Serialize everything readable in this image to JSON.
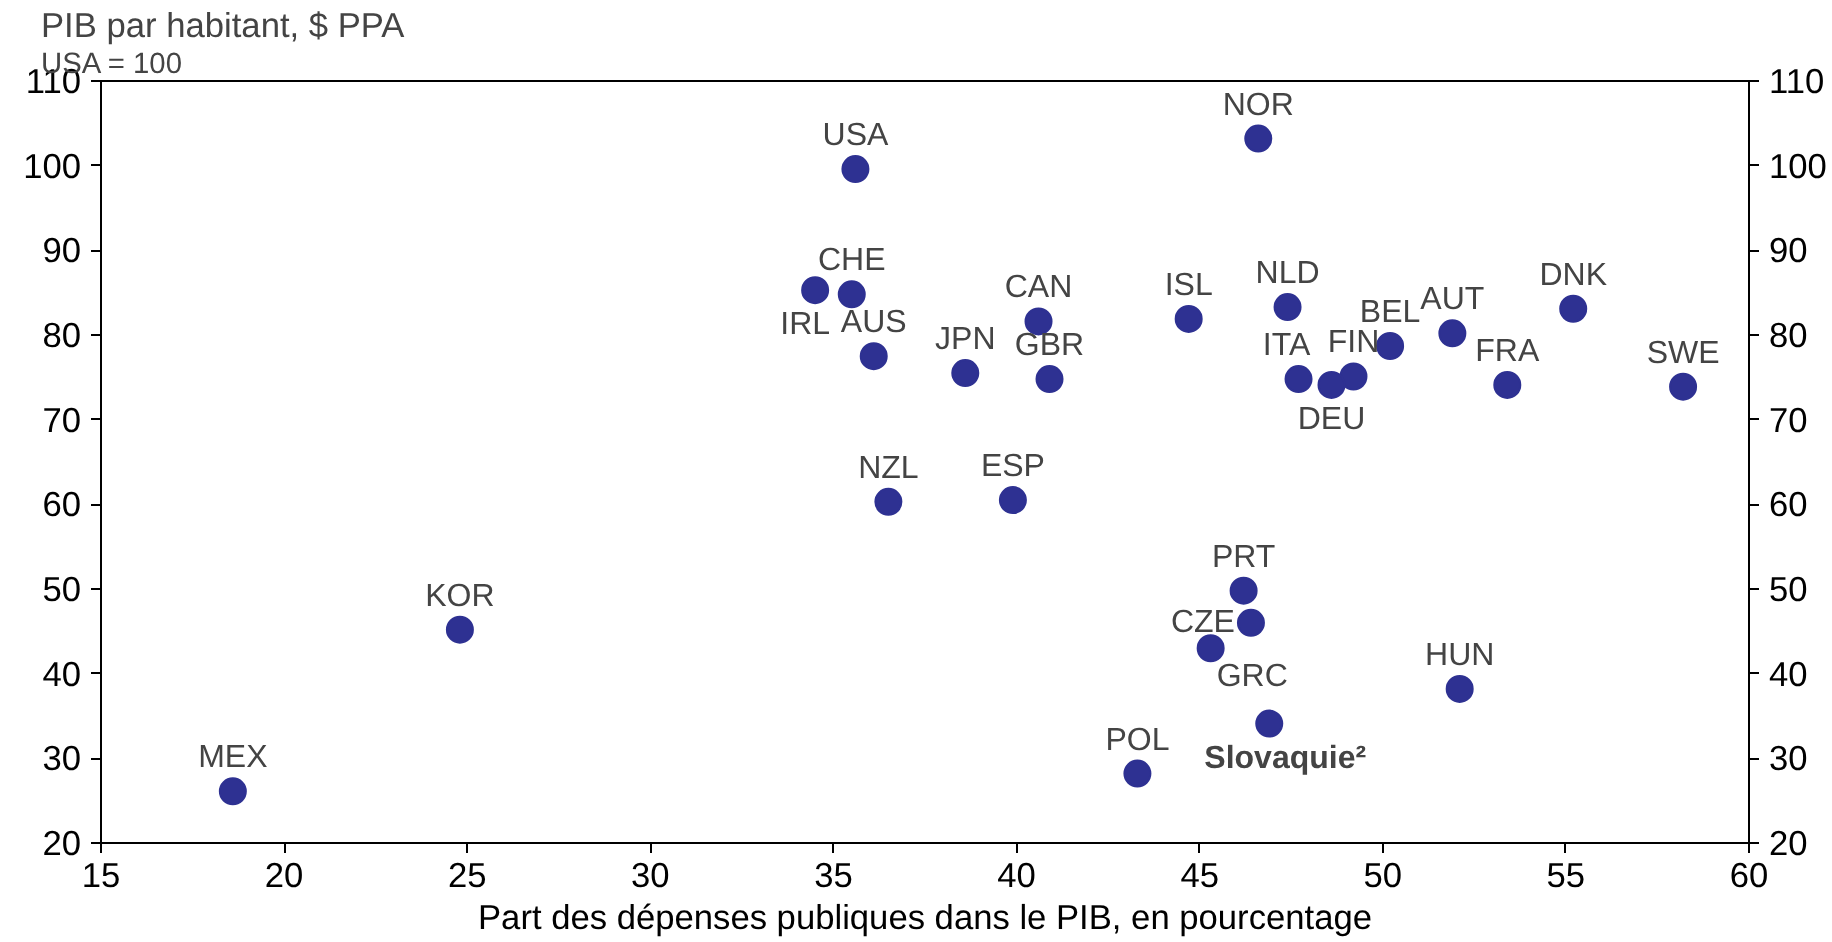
{
  "chart_data": {
    "type": "scatter",
    "title": "PIB par habitant, $ PPA",
    "subtitle": "USA = 100",
    "xlabel": "Part des dépenses publiques dans le PIB, en pourcentage",
    "xlim": [
      15,
      60
    ],
    "xticks": [
      15,
      20,
      25,
      30,
      35,
      40,
      45,
      50,
      55,
      60
    ],
    "ylim": [
      20,
      110
    ],
    "yticks": [
      20,
      30,
      40,
      50,
      60,
      70,
      80,
      90,
      100,
      110
    ],
    "y2lim": [
      20,
      110
    ],
    "y2ticks": [
      20,
      30,
      40,
      50,
      60,
      70,
      80,
      90,
      100,
      110
    ],
    "grid": false,
    "marker": "circle",
    "series": [
      {
        "color": "#2e3192",
        "x": [
          35.6,
          46.6,
          35.5,
          34.5,
          36.1,
          40.6,
          44.7,
          47.4,
          50.2,
          51.9,
          55.2,
          38.6,
          40.9,
          47.7,
          49.2,
          48.6,
          53.4,
          58.2,
          36.5,
          39.9,
          46.2,
          46.4,
          45.3,
          52.1,
          24.8,
          18.6,
          43.3,
          46.9
        ],
        "values": [
          99.6,
          103.2,
          84.8,
          85.3,
          77.5,
          81.6,
          81.9,
          83.3,
          78.7,
          80.2,
          83.1,
          75.5,
          74.8,
          74.8,
          75.1,
          74.1,
          74.1,
          73.9,
          60.3,
          60.5,
          49.8,
          46.0,
          43.0,
          38.2,
          45.2,
          26.1,
          28.2,
          34.1
        ]
      }
    ],
    "annotations": [
      {
        "text": "USA",
        "x": 35.6,
        "y": 99.6
      },
      {
        "text": "NOR",
        "x": 46.6,
        "y": 103.2
      },
      {
        "text": "CHE",
        "x": 35.5,
        "y": 84.8
      },
      {
        "text": "IRL",
        "x": 34.5,
        "y": 85.3
      },
      {
        "text": "AUS",
        "x": 36.1,
        "y": 77.5
      },
      {
        "text": "CAN",
        "x": 40.6,
        "y": 81.6
      },
      {
        "text": "ISL",
        "x": 44.7,
        "y": 81.9
      },
      {
        "text": "NLD",
        "x": 47.4,
        "y": 83.3
      },
      {
        "text": "BEL",
        "x": 50.2,
        "y": 78.7
      },
      {
        "text": "AUT",
        "x": 51.9,
        "y": 80.2
      },
      {
        "text": "DNK",
        "x": 55.2,
        "y": 83.1
      },
      {
        "text": "JPN",
        "x": 38.6,
        "y": 75.5
      },
      {
        "text": "GBR",
        "x": 40.9,
        "y": 74.8
      },
      {
        "text": "ITA",
        "x": 47.7,
        "y": 74.8
      },
      {
        "text": "FIN",
        "x": 49.2,
        "y": 75.1
      },
      {
        "text": "DEU",
        "x": 48.6,
        "y": 74.1
      },
      {
        "text": "FRA",
        "x": 53.4,
        "y": 74.1
      },
      {
        "text": "SWE",
        "x": 58.2,
        "y": 73.9
      },
      {
        "text": "NZL",
        "x": 36.5,
        "y": 60.3
      },
      {
        "text": "ESP",
        "x": 39.9,
        "y": 60.5
      },
      {
        "text": "PRT",
        "x": 46.2,
        "y": 49.8
      },
      {
        "text": "CZE",
        "x": 46.4,
        "y": 46.0
      },
      {
        "text": "GRC",
        "x": 45.3,
        "y": 43.0
      },
      {
        "text": "HUN",
        "x": 52.1,
        "y": 38.2
      },
      {
        "text": "KOR",
        "x": 24.8,
        "y": 45.2
      },
      {
        "text": "MEX",
        "x": 18.6,
        "y": 26.1
      },
      {
        "text": "POL",
        "x": 43.3,
        "y": 28.2
      },
      {
        "text": "Slovaquie²",
        "x": 46.9,
        "y": 34.1
      }
    ]
  }
}
